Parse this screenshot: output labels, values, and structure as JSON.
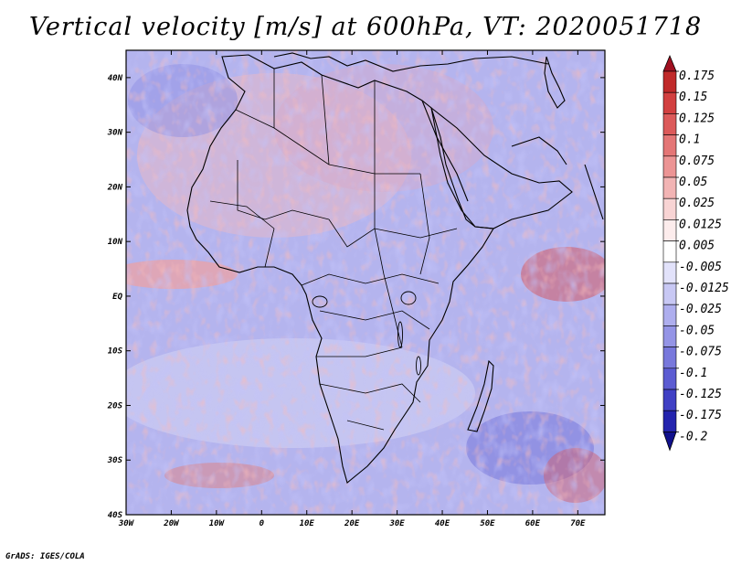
{
  "title": "Vertical velocity [m/s] at 600hPa, VT: 2020051718",
  "credit": "GrADS: IGES/COLA",
  "chart_data": {
    "type": "heatmap",
    "title": "Vertical velocity [m/s] at 600hPa, VT: 2020051718",
    "variable": "Vertical velocity",
    "units": "m/s",
    "level": "600hPa",
    "valid_time": "2020051718",
    "lon_range": [
      -30,
      76
    ],
    "lat_range": [
      -40,
      45
    ],
    "x_ticks": [
      {
        "value": -30,
        "label": "30W"
      },
      {
        "value": -20,
        "label": "20W"
      },
      {
        "value": -10,
        "label": "10W"
      },
      {
        "value": 0,
        "label": "0"
      },
      {
        "value": 10,
        "label": "10E"
      },
      {
        "value": 20,
        "label": "20E"
      },
      {
        "value": 30,
        "label": "30E"
      },
      {
        "value": 40,
        "label": "40E"
      },
      {
        "value": 50,
        "label": "50E"
      },
      {
        "value": 60,
        "label": "60E"
      },
      {
        "value": 70,
        "label": "70E"
      }
    ],
    "y_ticks": [
      {
        "value": 40,
        "label": "40N"
      },
      {
        "value": 30,
        "label": "30N"
      },
      {
        "value": 20,
        "label": "20N"
      },
      {
        "value": 10,
        "label": "10N"
      },
      {
        "value": 0,
        "label": "EQ"
      },
      {
        "value": -10,
        "label": "10S"
      },
      {
        "value": -20,
        "label": "20S"
      },
      {
        "value": -30,
        "label": "30S"
      },
      {
        "value": -40,
        "label": "40S"
      }
    ],
    "colorbar": {
      "labels": [
        "0.175",
        "0.15",
        "0.125",
        "0.1",
        "0.075",
        "0.05",
        "0.025",
        "0.0125",
        "0.005",
        "-0.005",
        "-0.0125",
        "-0.025",
        "-0.05",
        "-0.075",
        "-0.1",
        "-0.125",
        "-0.175",
        "-0.2"
      ],
      "colors": [
        "#a01020",
        "#c02a2a",
        "#d24040",
        "#dc5a5a",
        "#e47676",
        "#ec9494",
        "#f2b4b4",
        "#f8d4d4",
        "#fcecec",
        "#ffffff",
        "#e2e2fa",
        "#c8c8f4",
        "#aeaeee",
        "#9494e6",
        "#7878dc",
        "#5c5cd2",
        "#4040c4",
        "#2424ae",
        "#10108c"
      ]
    }
  }
}
